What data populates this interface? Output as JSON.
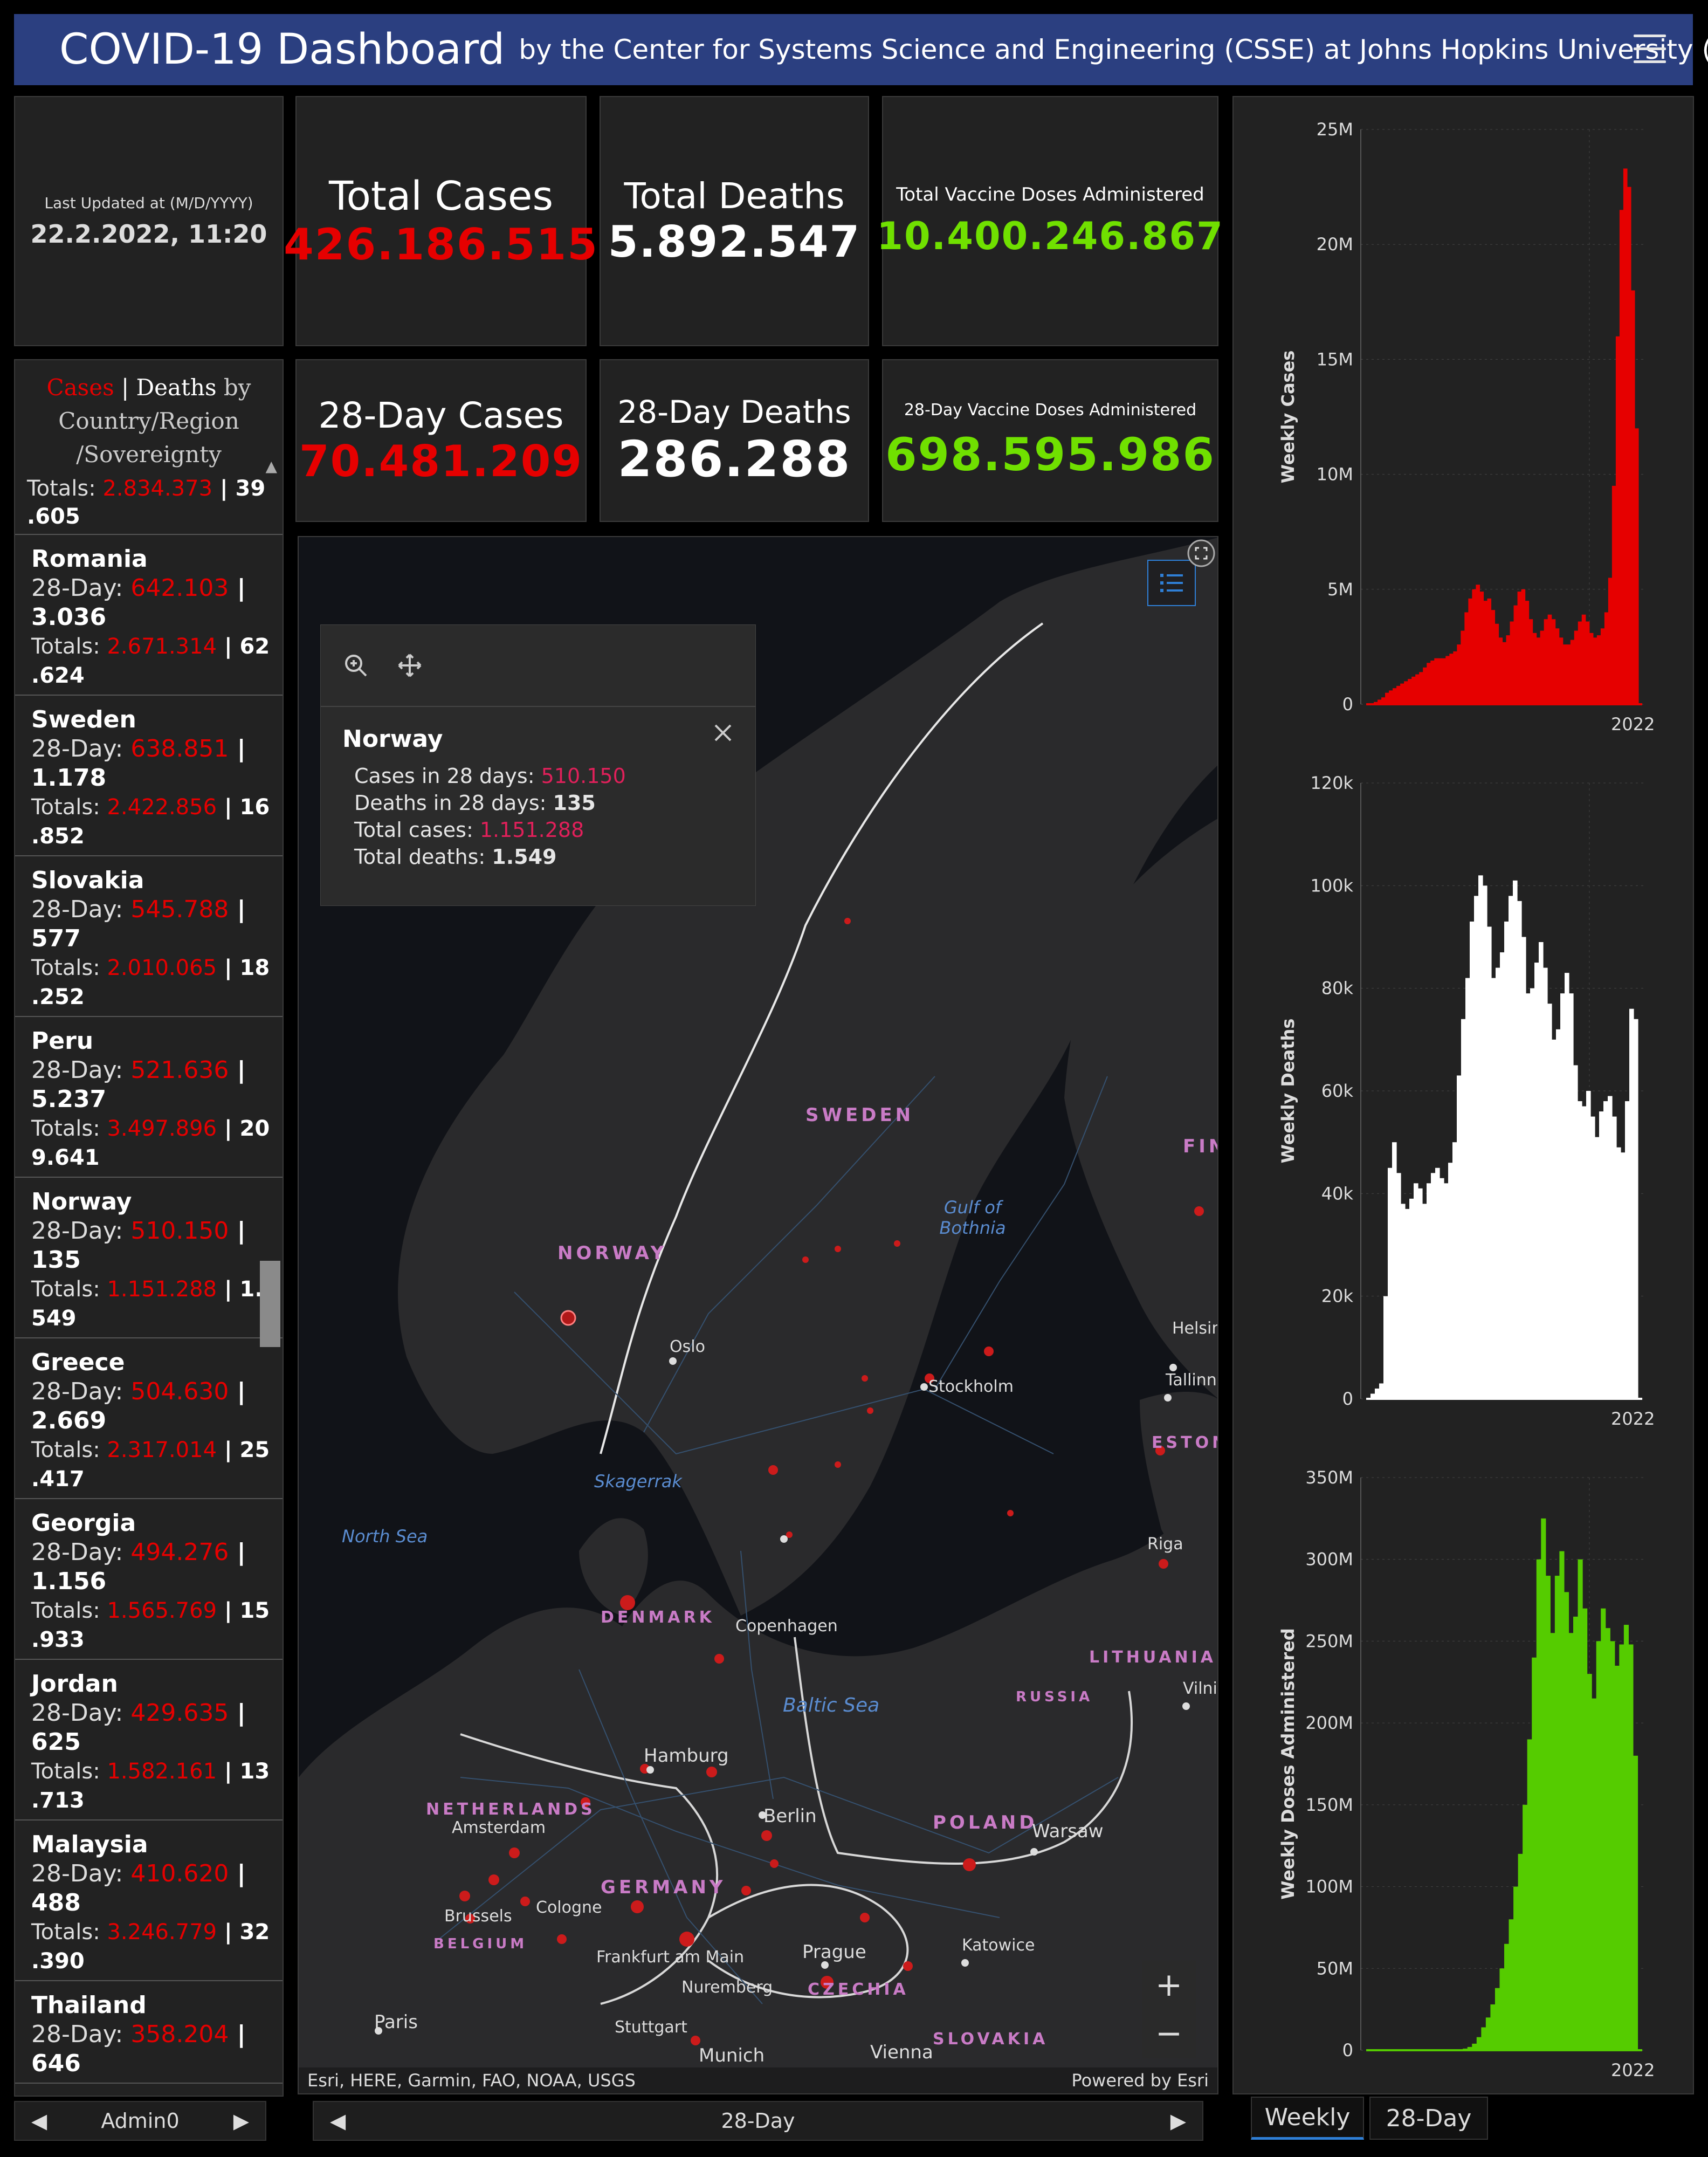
{
  "header": {
    "title": "COVID-19 Dashboard",
    "subtitle": "by the Center for Systems Science and Engineering (CSSE) at Johns Hopkins University (JHU)"
  },
  "last_updated": {
    "label": "Last Updated at (M/D/YYYY)",
    "value": "22.2.2022, 11:20"
  },
  "stats": {
    "total_cases": {
      "label": "Total Cases",
      "value": "426.186.515"
    },
    "total_deaths": {
      "label": "Total Deaths",
      "value": "5.892.547"
    },
    "total_vaccine": {
      "label": "Total Vaccine Doses Administered",
      "value": "10.400.246.867"
    },
    "cases_28": {
      "label": "28-Day Cases",
      "value": "70.481.209"
    },
    "deaths_28": {
      "label": "28-Day Deaths",
      "value": "286.288"
    },
    "vaccine_28": {
      "label": "28-Day Vaccine Doses Administered",
      "value": "698.595.986"
    }
  },
  "list": {
    "title_cases": "Cases",
    "title_sep": " | ",
    "title_deaths": "Deaths",
    "title_rest": " by Country/Region /Sovereignty",
    "top_totals": {
      "label": "Totals: ",
      "cases": "2.834.373",
      "sep": " | ",
      "deaths_a": "39",
      "deaths_b": ".605"
    },
    "day_label": "28-Day: ",
    "totals_label": "Totals: ",
    "sep": " | ",
    "rows": [
      {
        "name": "Romania",
        "cases28": "642.103",
        "deaths28": "3.036",
        "cases": "2.671.314",
        "deaths_a": "62",
        "deaths_b": ".624"
      },
      {
        "name": "Sweden",
        "cases28": "638.851",
        "deaths28": "1.178",
        "cases": "2.422.856",
        "deaths_a": "16",
        "deaths_b": ".852"
      },
      {
        "name": "Slovakia",
        "cases28": "545.788",
        "deaths28": "577",
        "cases": "2.010.065",
        "deaths_a": "18",
        "deaths_b": ".252"
      },
      {
        "name": "Peru",
        "cases28": "521.636",
        "deaths28": "5.237",
        "cases": "3.497.896",
        "deaths_a": "20",
        "deaths_b": "9.641"
      },
      {
        "name": "Norway",
        "cases28": "510.150",
        "deaths28": "135",
        "cases": "1.151.288",
        "deaths_a": "1.",
        "deaths_b": "549"
      },
      {
        "name": "Greece",
        "cases28": "504.630",
        "deaths28": "2.669",
        "cases": "2.317.014",
        "deaths_a": "25",
        "deaths_b": ".417"
      },
      {
        "name": "Georgia",
        "cases28": "494.276",
        "deaths28": "1.156",
        "cases": "1.565.769",
        "deaths_a": "15",
        "deaths_b": ".933"
      },
      {
        "name": "Jordan",
        "cases28": "429.635",
        "deaths28": "625",
        "cases": "1.582.161",
        "deaths_a": "13",
        "deaths_b": ".713"
      },
      {
        "name": "Malaysia",
        "cases28": "410.620",
        "deaths28": "488",
        "cases": "3.246.779",
        "deaths_a": "32",
        "deaths_b": ".390"
      },
      {
        "name": "Thailand",
        "cases28": "358.204",
        "deaths28": "646",
        "cases": "",
        "deaths_a": "",
        "deaths_b": ""
      }
    ]
  },
  "popup": {
    "title": "Norway",
    "cases28_label": "Cases in 28 days: ",
    "cases28": "510.150",
    "deaths28_label": "Deaths in 28 days: ",
    "deaths28": "135",
    "cases_label": "Total cases: ",
    "cases": "1.151.288",
    "deaths_label": "Total deaths: ",
    "deaths": "1.549"
  },
  "map": {
    "countries": [
      "SWEDEN",
      "NORWAY",
      "DENMARK",
      "NETHERLANDS",
      "GERMANY",
      "POLAND",
      "LITHUANIA",
      "RUSSIA",
      "CZECHIA",
      "SLOVAKIA",
      "BELGIUM",
      "ESTONI",
      "FIN"
    ],
    "cities": [
      "Oslo",
      "Stockholm",
      "Helsin",
      "Tallinn",
      "Riga",
      "Copenhagen",
      "Hamburg",
      "Berlin",
      "Amsterdam",
      "Brussels",
      "Cologne",
      "Frankfurt am Main",
      "Prague",
      "Warsaw",
      "Katowice",
      "Nuremberg",
      "Stuttgart",
      "Munich",
      "Vienna",
      "Paris",
      "Vilni"
    ],
    "seas": [
      "Gulf of Bothnia",
      "Skagerrak",
      "North Sea",
      "Baltic Sea"
    ],
    "attribution_left": "Esri, HERE, Garmin, FAO, NOAA, USGS",
    "attribution_right": "Powered by Esri"
  },
  "charts": {
    "cases": {
      "ylabel": "Weekly Cases",
      "ticks": [
        "25M",
        "20M",
        "15M",
        "10M",
        "5M",
        "0"
      ],
      "xtick": "2022",
      "color": "#e60000"
    },
    "deaths": {
      "ylabel": "Weekly Deaths",
      "ticks": [
        "120k",
        "100k",
        "80k",
        "60k",
        "40k",
        "20k",
        "0"
      ],
      "xtick": "2022",
      "color": "#ffffff"
    },
    "vaccine": {
      "ylabel": "Weekly Doses Administered",
      "ticks": [
        "350M",
        "300M",
        "250M",
        "200M",
        "150M",
        "100M",
        "50M",
        "0"
      ],
      "xtick": "2022",
      "color": "#55cc00"
    }
  },
  "chart_data": [
    {
      "type": "area",
      "ylabel": "Weekly Cases",
      "ylim": [
        0,
        25000000
      ],
      "xtick": "2022",
      "values": [
        0,
        0,
        0.1,
        0.2,
        0.3,
        0.5,
        0.6,
        0.7,
        0.8,
        0.9,
        1.0,
        1.1,
        1.2,
        1.3,
        1.4,
        1.6,
        1.8,
        1.9,
        2.0,
        2.0,
        2.0,
        2.1,
        2.2,
        2.3,
        2.6,
        3.2,
        4.0,
        4.6,
        5.0,
        5.2,
        4.9,
        4.5,
        4.6,
        4.1,
        3.5,
        2.9,
        2.7,
        3.0,
        3.6,
        4.3,
        4.9,
        5.0,
        4.5,
        3.7,
        3.1,
        2.9,
        3.2,
        3.7,
        3.9,
        3.7,
        3.3,
        2.9,
        2.6,
        2.6,
        2.8,
        3.2,
        3.6,
        3.9,
        3.6,
        3.1,
        2.9,
        3.0,
        3.3,
        4.0,
        5.5,
        9.5,
        16.0,
        21.5,
        23.3,
        22.5,
        18.0,
        12.0,
        0
      ]
    },
    {
      "type": "area",
      "ylabel": "Weekly Deaths",
      "ylim": [
        0,
        120000
      ],
      "xtick": "2022",
      "values": [
        0,
        1,
        2,
        3,
        20,
        45,
        50,
        44,
        38,
        37,
        39,
        42,
        41,
        38,
        42,
        44,
        45,
        43,
        42,
        46,
        50,
        63,
        74,
        82,
        93,
        98,
        102,
        100,
        92,
        82,
        84,
        87,
        93,
        98,
        101,
        97,
        90,
        79,
        80,
        85,
        89,
        84,
        77,
        70,
        72,
        79,
        83,
        79,
        65,
        58,
        57,
        60,
        55,
        51,
        56,
        58,
        59,
        55,
        49,
        48,
        58,
        76,
        74,
        0
      ]
    },
    {
      "type": "area",
      "ylabel": "Weekly Doses Administered",
      "ylim": [
        0,
        350000000
      ],
      "xtick": "2022",
      "values": [
        0,
        0,
        0,
        0,
        0,
        0,
        0,
        0,
        0,
        0,
        0,
        0,
        0,
        0,
        0,
        0,
        0,
        0,
        0,
        0,
        0,
        1,
        2,
        4,
        8,
        14,
        20,
        28,
        38,
        50,
        65,
        80,
        100,
        120,
        150,
        190,
        240,
        300,
        325,
        290,
        255,
        290,
        305,
        280,
        255,
        265,
        300,
        270,
        230,
        215,
        250,
        270,
        258,
        250,
        235,
        248,
        260,
        248,
        180,
        0
      ]
    }
  ],
  "bottom": {
    "pager_left": "Admin0",
    "pager_map": "28-Day",
    "tab_weekly": "Weekly",
    "tab_28": "28-Day"
  }
}
